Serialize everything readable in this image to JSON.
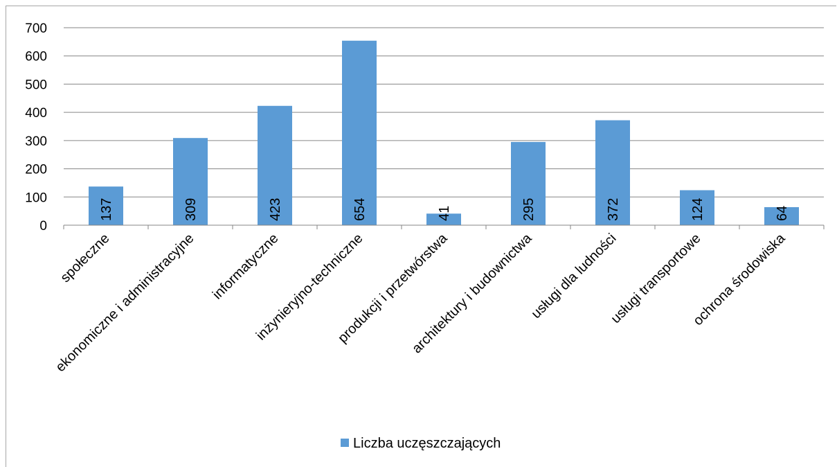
{
  "chart_data": {
    "type": "bar",
    "categories": [
      "społeczne",
      "ekonomiczne i administracyjne",
      "informatyczne",
      "inżynieryjno-techniczne",
      "produkcji i przetwórstwa",
      "architektury i budownictwa",
      "usługi dla ludności",
      "usługi transportowe",
      "ochrona środowiska"
    ],
    "series": [
      {
        "name": "Liczba uczęszczających",
        "values": [
          137,
          309,
          423,
          654,
          41,
          295,
          372,
          124,
          64
        ]
      }
    ],
    "ylim": [
      0,
      700
    ],
    "yticks": [
      0,
      100,
      200,
      300,
      400,
      500,
      600,
      700
    ],
    "grid": true,
    "legend": "bottom",
    "bar_color": "#5b9bd5",
    "grid_color": "#868686"
  }
}
